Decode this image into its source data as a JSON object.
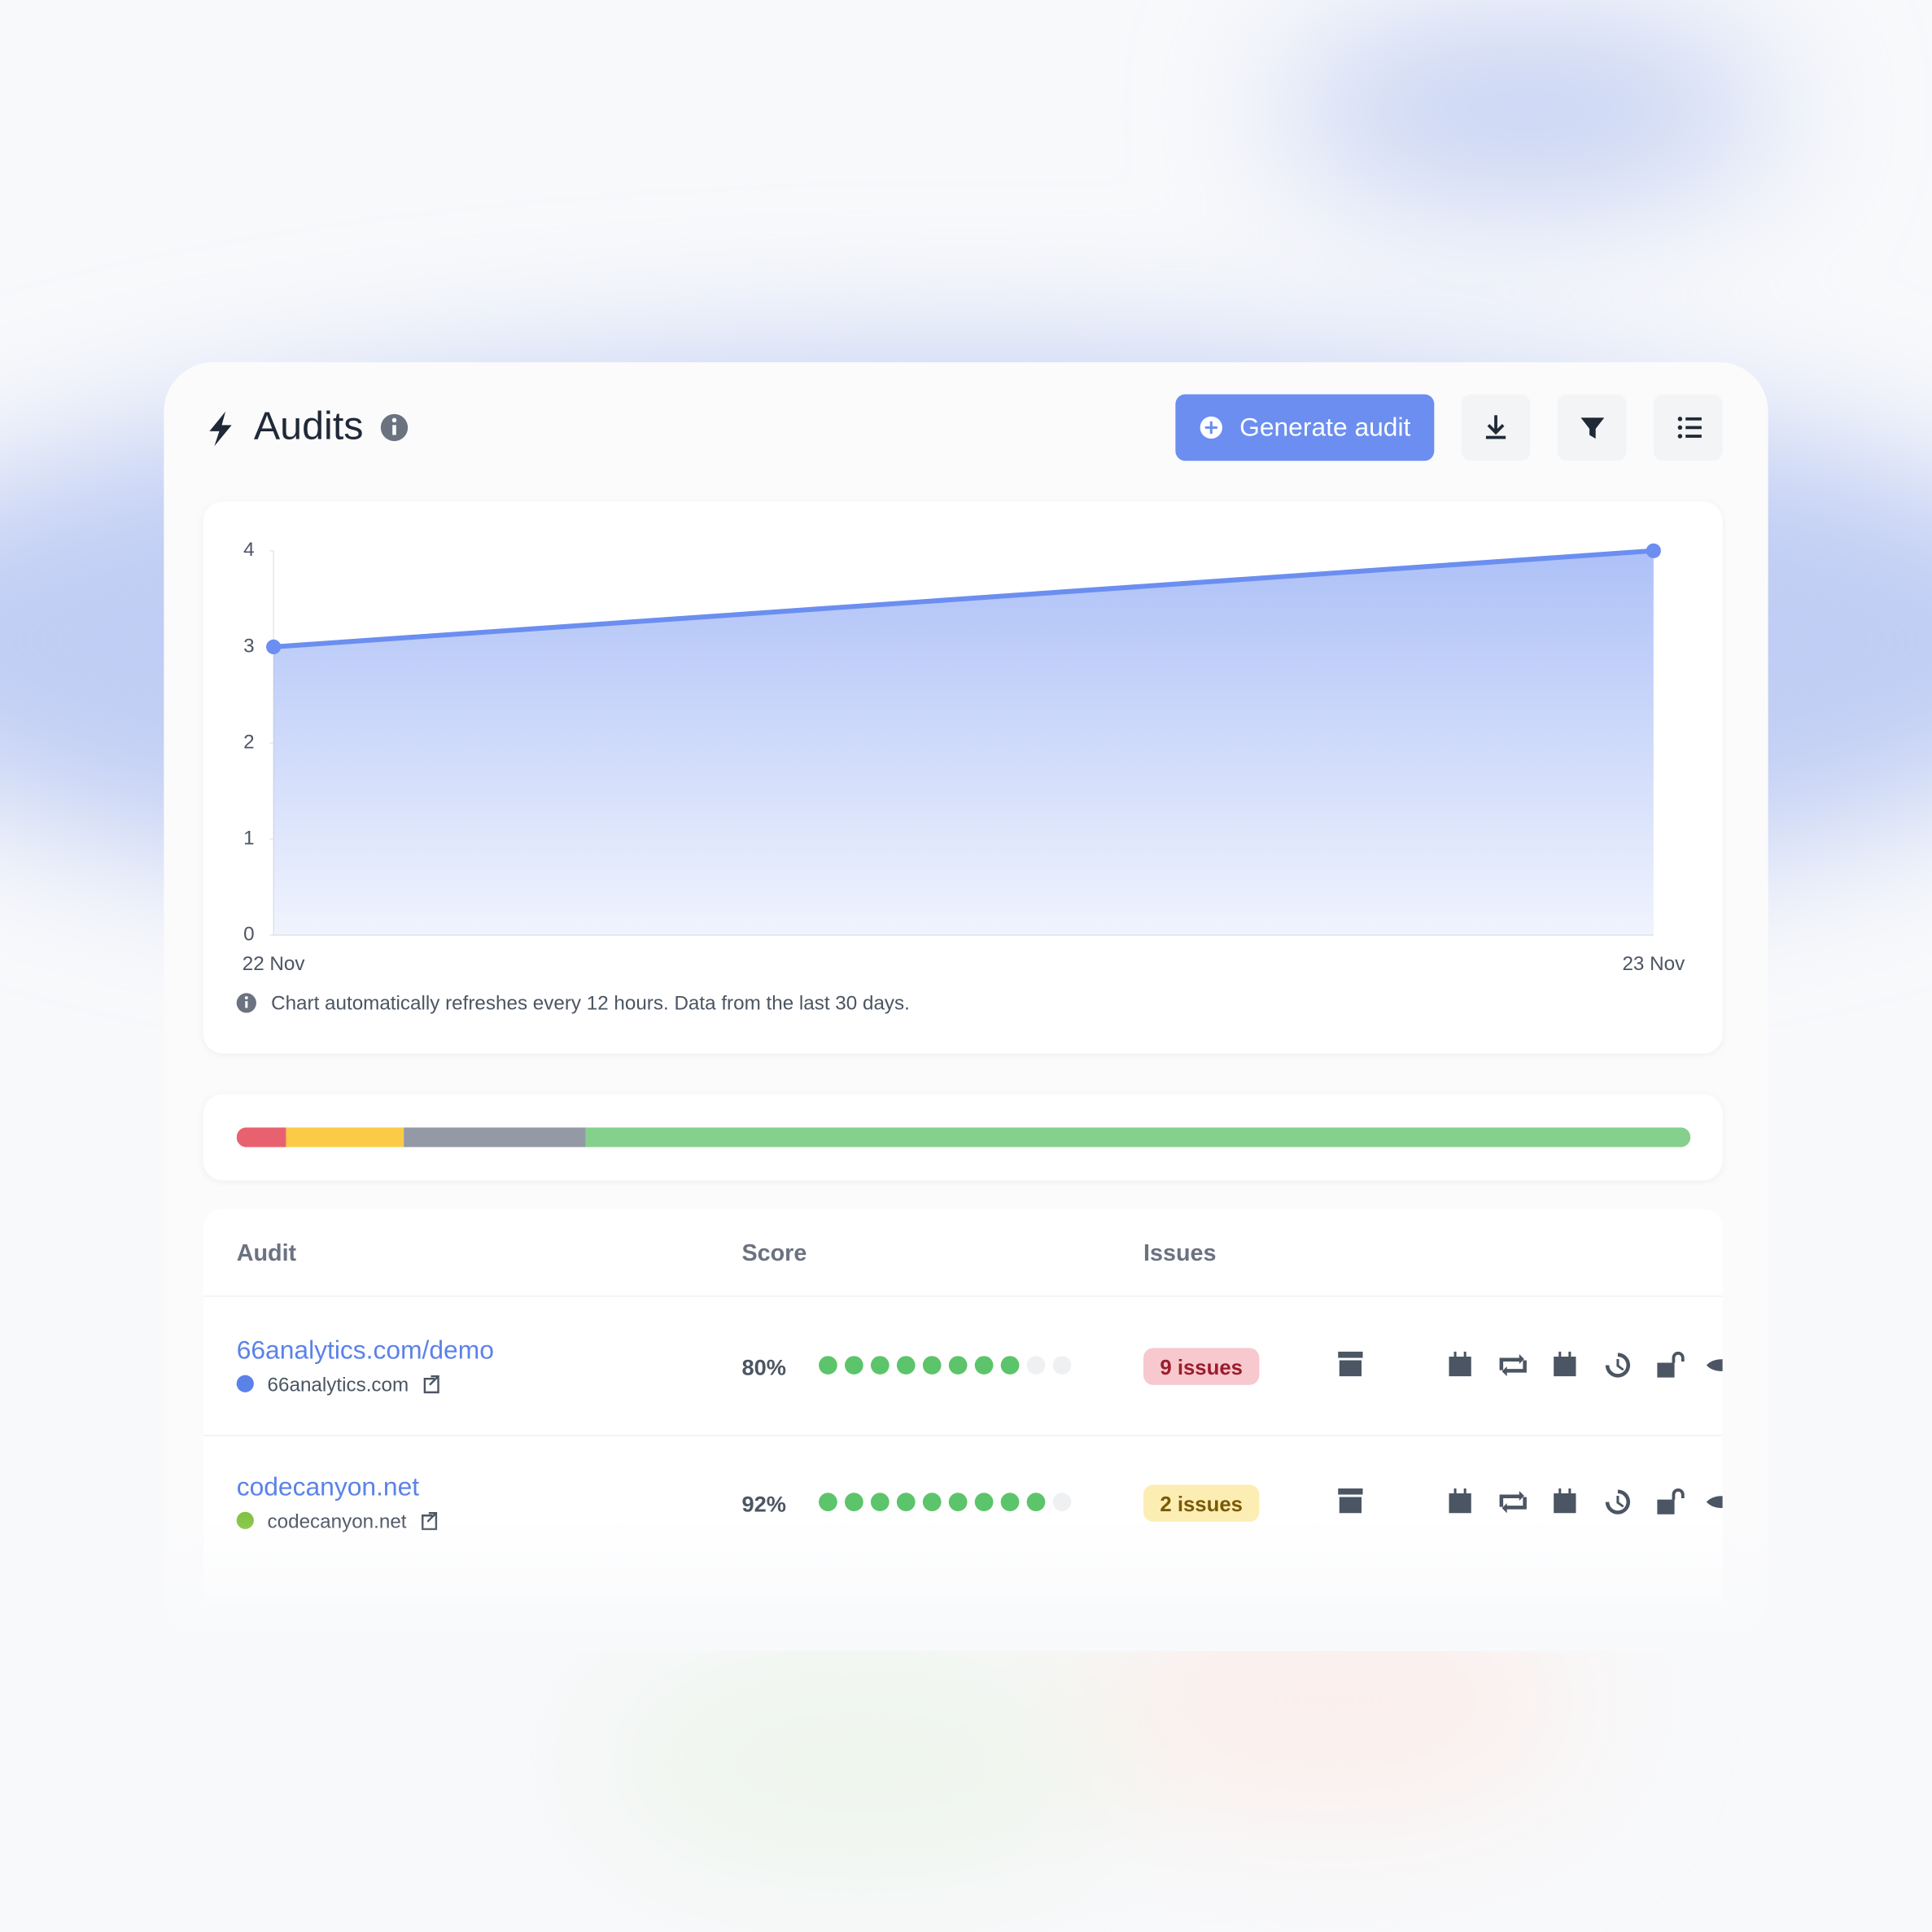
{
  "header": {
    "title": "Audits",
    "button": "Generate audit"
  },
  "chart_data": {
    "type": "area",
    "x": [
      "22 Nov",
      "23 Nov"
    ],
    "values": [
      3,
      4
    ],
    "color": "#6b8ef0",
    "ylim": [
      0,
      4
    ],
    "yticks": [
      0,
      1,
      2,
      3,
      4
    ],
    "grid": false
  },
  "chart_note": "Chart automatically refreshes every 12 hours. Data from the last 30 days.",
  "status_bar": {
    "segments": [
      {
        "color": "#e8616f",
        "value": 3.4
      },
      {
        "color": "#fbcb47",
        "value": 8.1
      },
      {
        "color": "#939aa6",
        "value": 12.5
      },
      {
        "color": "#86d08e",
        "value": 76
      }
    ]
  },
  "table": {
    "columns": [
      "Audit",
      "Score",
      "Issues"
    ],
    "rows": [
      {
        "name": "66analytics.com/demo",
        "domain": "66analytics.com",
        "score": {
          "value": 80,
          "label": "80%"
        },
        "issues": {
          "label": "9 issues",
          "color": "#f7c8cd",
          "text_color": "#9b1c2c"
        }
      },
      {
        "name": "codecanyon.net",
        "domain": "codecanyon.net",
        "score": {
          "value": 92,
          "label": "92%"
        },
        "issues": {
          "label": "2 issues",
          "color": "#fcedb3",
          "text_color": "#7a5a05"
        }
      }
    ]
  }
}
